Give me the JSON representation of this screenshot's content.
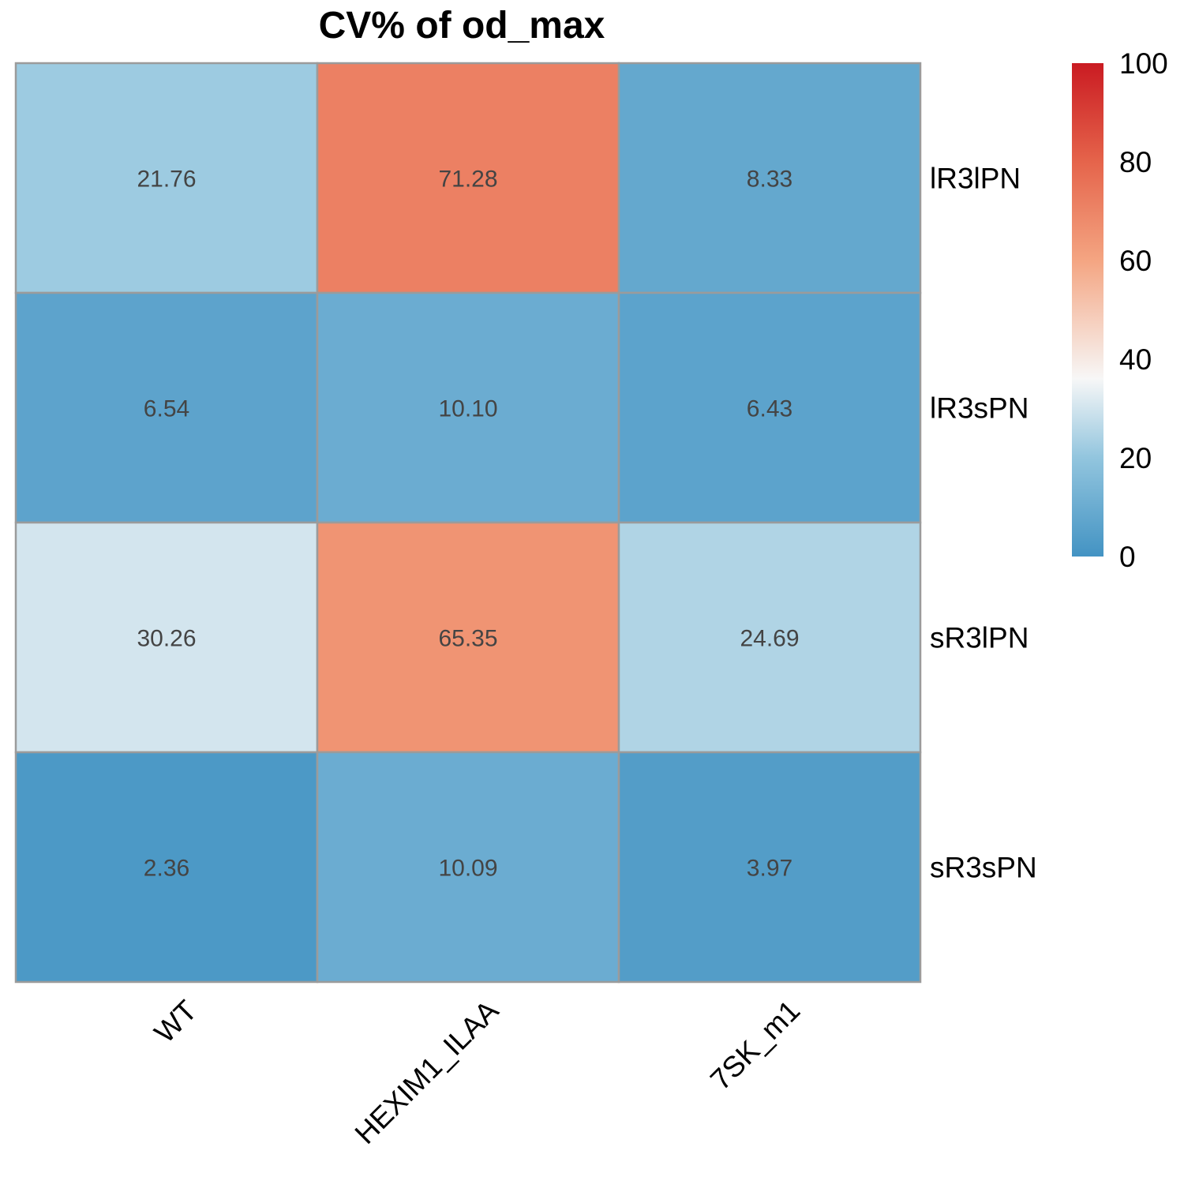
{
  "chart_data": {
    "type": "heatmap",
    "title": "CV% of  od_max",
    "columns": [
      "WT",
      "HEXIM1_ILAA",
      "7SK_m1"
    ],
    "rows": [
      "lR3lPN",
      "lR3sPN",
      "sR3lPN",
      "sR3sPN"
    ],
    "values": [
      [
        21.76,
        71.28,
        8.33
      ],
      [
        6.54,
        10.1,
        6.43
      ],
      [
        30.26,
        65.35,
        24.69
      ],
      [
        2.36,
        10.09,
        3.97
      ]
    ],
    "value_labels": [
      [
        "21.76",
        "71.28",
        "8.33"
      ],
      [
        "6.54",
        "10.10",
        "6.43"
      ],
      [
        "30.26",
        "65.35",
        "24.69"
      ],
      [
        "2.36",
        "10.09",
        "3.97"
      ]
    ],
    "colorbar": {
      "range": [
        0,
        100
      ],
      "ticks": [
        "0",
        "20",
        "40",
        "60",
        "80",
        "100"
      ],
      "tick_values": [
        0,
        20,
        40,
        60,
        80,
        100
      ],
      "color_stops": [
        {
          "value": 0,
          "color": "#4393c3"
        },
        {
          "value": 20,
          "color": "#92c5de"
        },
        {
          "value": 36,
          "color": "#f7f7f7"
        },
        {
          "value": 60,
          "color": "#f4a582"
        },
        {
          "value": 80,
          "color": "#e5644b"
        },
        {
          "value": 100,
          "color": "#ca1b22"
        }
      ],
      "placement": "right"
    },
    "grid_color": "#9b9b9b",
    "legend_placement": "top-right"
  }
}
